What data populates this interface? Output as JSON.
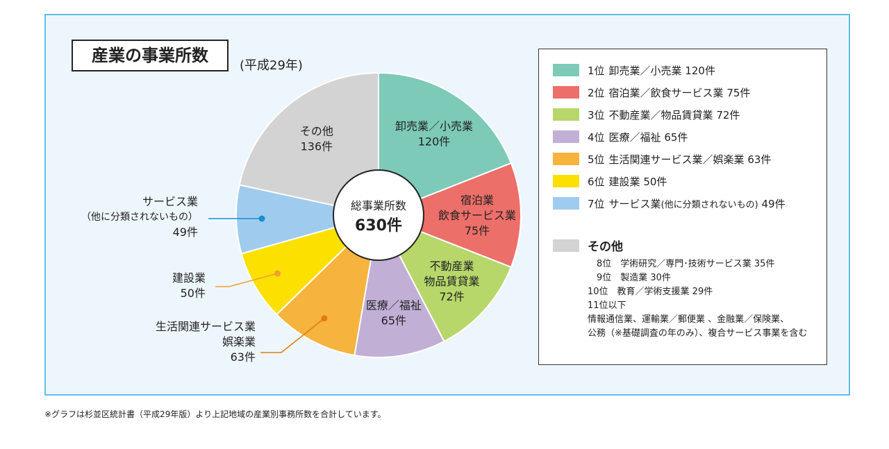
{
  "title": "産業の事業所数",
  "subtitle": "(平成29年)",
  "center": {
    "label": "総事業所数",
    "total": "630件"
  },
  "chart_data": {
    "type": "pie",
    "title": "産業の事業所数",
    "total": 630,
    "slices": [
      {
        "name": "卸売業／小売業",
        "value": 120,
        "color": "#7ccab7",
        "label_lines": [
          "卸売業／小売業",
          "120件"
        ],
        "label_color": "#ffffff"
      },
      {
        "name": "宿泊業／飲食サービス業",
        "value": 75,
        "color": "#ec6f69",
        "label_lines": [
          "宿泊業",
          "飲食サービス業",
          "75件"
        ],
        "label_color": "#ffffff"
      },
      {
        "name": "不動産業／物品賃貸業",
        "value": 72,
        "color": "#b7d76b",
        "label_lines": [
          "不動産業",
          "物品賃貸業",
          "72件"
        ],
        "label_color": "#222222"
      },
      {
        "name": "医療／福祉",
        "value": 65,
        "color": "#c1afd6",
        "label_lines": [
          "医療／福祉",
          "65件"
        ],
        "label_color": "#222222"
      },
      {
        "name": "生活関連サービス業／娯楽業",
        "value": 63,
        "color": "#f6b33d",
        "label_lines": [],
        "label_color": "#222222"
      },
      {
        "name": "建設業",
        "value": 50,
        "color": "#fbe000",
        "label_lines": [],
        "label_color": "#222222"
      },
      {
        "name": "サービス業（他に分類されないもの）",
        "value": 49,
        "color": "#9fcbef",
        "label_lines": [],
        "label_color": "#222222"
      },
      {
        "name": "その他",
        "value": 136,
        "color": "#d3d3d3",
        "label_lines": [
          "その他",
          "136件"
        ],
        "label_color": "#222222"
      }
    ]
  },
  "outside_labels": {
    "service": {
      "line1": "サービス業",
      "line2": "（他に分類されないもの）",
      "line3": "49件",
      "leader_color": "#1a8dd0"
    },
    "construction": {
      "line1": "建設業",
      "line2": "50件",
      "leader_color": "#f0a030"
    },
    "living": {
      "line1": "生活関連サービス業",
      "line2": "娯楽業",
      "line3": "63件",
      "leader_color": "#e07b10"
    }
  },
  "legend": {
    "items": [
      {
        "rank": "1位",
        "text": "卸売業／小売業 120件",
        "color": "#7ccab7"
      },
      {
        "rank": "2位",
        "text": "宿泊業／飲食サービス業 75件",
        "color": "#ec6f69"
      },
      {
        "rank": "3位",
        "text": "不動産業／物品賃貸業 72件",
        "color": "#b7d76b"
      },
      {
        "rank": "4位",
        "text": "医療／福祉 65件",
        "color": "#c1afd6"
      },
      {
        "rank": "5位",
        "text": "生活関連サービス業／娯楽業 63件",
        "color": "#f6b33d"
      },
      {
        "rank": "6位",
        "text": "建設業 50件",
        "color": "#fbe000"
      },
      {
        "rank": "7位",
        "text": "サービス業",
        "small": "(他に分類されないもの)",
        "suffix": " 49件",
        "color": "#9fcbef"
      }
    ],
    "other_title": "その他",
    "other_color": "#d3d3d3",
    "other_lines": [
      "　8位　学術研究／専門･技術サービス業 35件",
      "　9位　製造業 30件",
      "10位　教育／学術支援業 29件",
      "11位以下",
      "情報通信業、運輸業／郵便業 、金融業／保険業、",
      "公務（※基礎調査の年のみ）、複合サービス事業を含む"
    ]
  },
  "footnote": "※グラフは杉並区統計書（平成29年版）より上記地域の産業別事務所数を合計しています。"
}
